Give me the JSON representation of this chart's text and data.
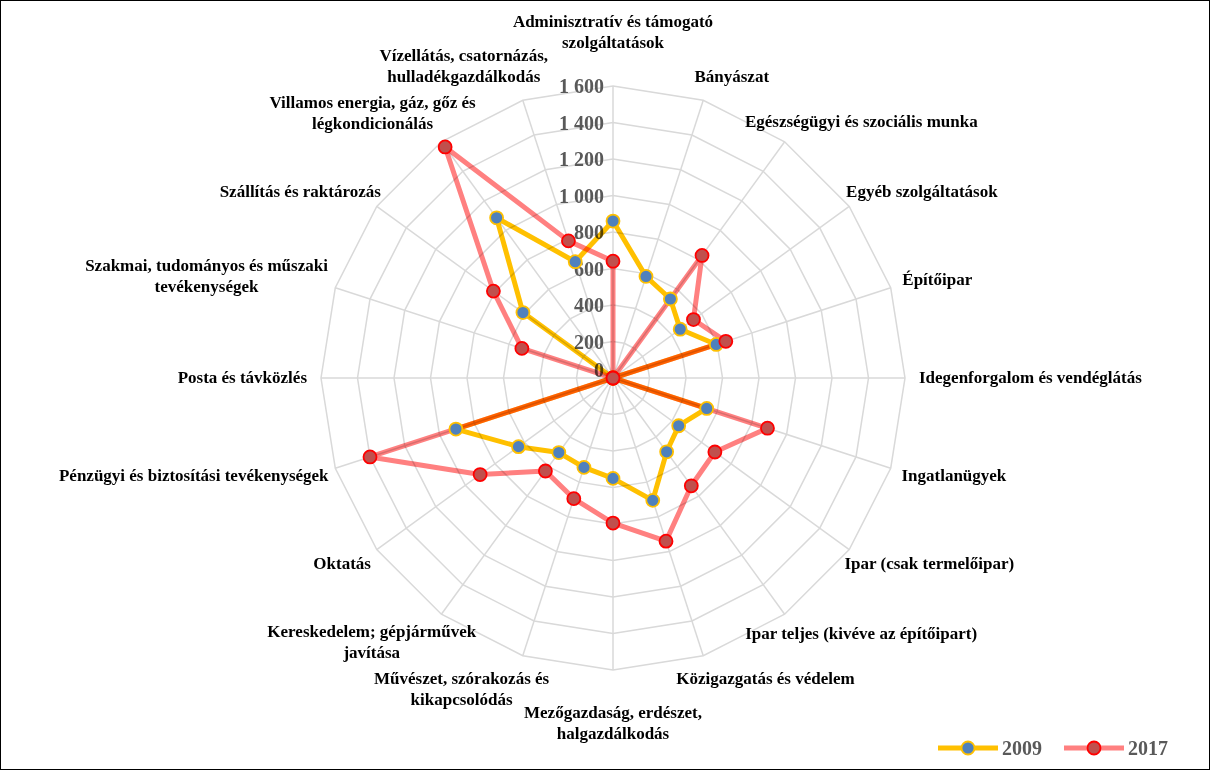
{
  "chart_data": {
    "type": "radar",
    "categories": [
      "Adminisztratív és támogató szolgáltatások",
      "Bányászat",
      "Egészségügyi és szociális munka",
      "Egyéb szolgáltatások",
      "Építőipar",
      "Idegenforgalom és vendéglátás",
      "Ingatlanügyek",
      "Ipar (csak termelőipar)",
      "Ipar teljes (kivéve az építőipart)",
      "Közigazgatás és védelem",
      "Mezőgazdaság, erdészet, halgazdálkodás",
      "Művészet, szórakozás és kikapcsolódás",
      "Kereskedelem; gépjárművek javítása",
      "Oktatás",
      "Pénzügyi és biztosítási tevékenységek",
      "Posta és távközlés",
      "Szakmai, tudományos és műszaki tevékenységek",
      "Szállítás és raktározás",
      "Villamos energia, gáz, gőz és légkondicionálás",
      "Vízellátás, csatornázás, hulladékgazdálkodás"
    ],
    "series": [
      {
        "name": "2009",
        "color": "#ffc000",
        "values": [
          860,
          585,
          535,
          455,
          595,
          0,
          540,
          445,
          500,
          705,
          550,
          515,
          505,
          640,
          905,
          0,
          0,
          610,
          1085,
          670
        ]
      },
      {
        "name": "2017",
        "color": "#ff8080",
        "values": [
          640,
          0,
          830,
          545,
          650,
          0,
          890,
          690,
          730,
          940,
          795,
          695,
          630,
          900,
          1400,
          0,
          525,
          810,
          1565,
          790
        ]
      }
    ],
    "ylim": [
      0,
      1600
    ],
    "yticks": [
      0,
      200,
      400,
      600,
      800,
      {
        "value": 1000,
        "label": "1 000"
      },
      {
        "value": 1200,
        "label": "1 200"
      },
      {
        "value": 1400,
        "label": "1 400"
      },
      {
        "value": 1600,
        "label": "1 600"
      }
    ],
    "grid": true,
    "legend": "bottom right",
    "marker": "circle",
    "line_style": "solid"
  }
}
